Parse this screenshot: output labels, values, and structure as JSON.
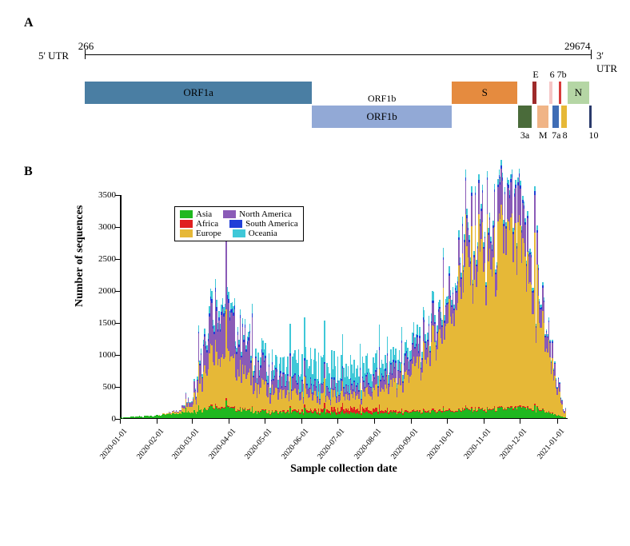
{
  "panelA": {
    "label": "A",
    "utr5": "5' UTR",
    "utr3": "3' UTR",
    "leftPos": "266",
    "rightPos": "29674",
    "scaleTotal": 29674,
    "trackTopY": 54,
    "trackBotY": 84,
    "genes": [
      {
        "name": "ORF1a",
        "start": 266,
        "end": 13468,
        "color": "#4a7ea3",
        "row": "top",
        "labelInside": true
      },
      {
        "name": "ORF1b",
        "start": 13468,
        "end": 21555,
        "color": "#92a9d6",
        "row": "bot",
        "labelInside": true,
        "labelAbove": true,
        "labelAboveText": "ORF1b"
      },
      {
        "name": "S",
        "start": 21563,
        "end": 25384,
        "color": "#e58b3f",
        "row": "top",
        "labelInside": true
      },
      {
        "name": "3a",
        "start": 25393,
        "end": 26220,
        "color": "#4a6b3a",
        "row": "bot",
        "labelBelow": true
      },
      {
        "name": "E",
        "start": 26245,
        "end": 26472,
        "color": "#9e2b2b",
        "row": "top",
        "labelAbove": true,
        "labelAboveText": "E"
      },
      {
        "name": "M",
        "start": 26523,
        "end": 27191,
        "color": "#f0b486",
        "row": "bot",
        "labelBelow": true
      },
      {
        "name": "6",
        "start": 27202,
        "end": 27387,
        "color": "#f6c6c6",
        "row": "top",
        "labelAbove": true,
        "labelAboveText": "6"
      },
      {
        "name": "7a",
        "start": 27394,
        "end": 27759,
        "color": "#3f6db5",
        "row": "bot",
        "labelBelow": true
      },
      {
        "name": "7b",
        "start": 27756,
        "end": 27887,
        "color": "#d83a3a",
        "row": "top",
        "labelAbove": true,
        "labelAboveText": "7b"
      },
      {
        "name": "8",
        "start": 27894,
        "end": 28259,
        "color": "#e6b837",
        "row": "bot",
        "labelBelow": true
      },
      {
        "name": "N",
        "start": 28274,
        "end": 29533,
        "color": "#b5d6a5",
        "row": "top",
        "labelInside": true
      },
      {
        "name": "10",
        "start": 29558,
        "end": 29674,
        "color": "#2a3a6b",
        "row": "bot",
        "labelBelow": true
      }
    ]
  },
  "panelB": {
    "label": "B",
    "ylabel": "Number of sequences",
    "xlabel": "Sample collection date",
    "ylim": [
      0,
      3500
    ],
    "ytick_step": 500,
    "legend": [
      {
        "name": "Asia",
        "color": "#1fb81f"
      },
      {
        "name": "Africa",
        "color": "#e02020"
      },
      {
        "name": "Europe",
        "color": "#e6b837"
      },
      {
        "name": "North America",
        "color": "#8a5bb7"
      },
      {
        "name": "South America",
        "color": "#1f3fd8"
      },
      {
        "name": "Oceania",
        "color": "#3fc8d8"
      }
    ],
    "xticks": [
      "2020-01-01",
      "2020-02-01",
      "2020-03-01",
      "2020-04-01",
      "2020-05-01",
      "2020-06-01",
      "2020-07-01",
      "2020-08-01",
      "2020-09-01",
      "2020-10-01",
      "2020-11-01",
      "2020-12-01",
      "2021-01-01"
    ],
    "stack_order": [
      "Asia",
      "Africa",
      "Europe",
      "North America",
      "South America",
      "Oceania"
    ],
    "series_colors": {
      "Asia": "#1fb81f",
      "Africa": "#e02020",
      "Europe": "#e6b837",
      "North America": "#8a5bb7",
      "South America": "#1f3fd8",
      "Oceania": "#3fc8d8"
    },
    "profile": [
      {
        "d": "2020-01-01",
        "v": {
          "Asia": 5
        }
      },
      {
        "d": "2020-01-10",
        "v": {
          "Asia": 20
        }
      },
      {
        "d": "2020-01-20",
        "v": {
          "Asia": 30
        }
      },
      {
        "d": "2020-02-01",
        "v": {
          "Asia": 40
        }
      },
      {
        "d": "2020-02-10",
        "v": {
          "Asia": 60,
          "Europe": 10
        }
      },
      {
        "d": "2020-02-20",
        "v": {
          "Asia": 80,
          "Europe": 40,
          "North America": 20
        }
      },
      {
        "d": "2020-03-01",
        "v": {
          "Asia": 100,
          "Europe": 120,
          "North America": 80,
          "Oceania": 20
        }
      },
      {
        "d": "2020-03-10",
        "v": {
          "Asia": 150,
          "Europe": 600,
          "North America": 400,
          "Oceania": 80,
          "South America": 30
        }
      },
      {
        "d": "2020-03-20",
        "v": {
          "Asia": 180,
          "Africa": 20,
          "Europe": 900,
          "North America": 650,
          "South America": 60,
          "Oceania": 120
        }
      },
      {
        "d": "2020-03-28",
        "v": {
          "Asia": 160,
          "Africa": 20,
          "Europe": 820,
          "North America": 720,
          "South America": 60,
          "Oceania": 110
        }
      },
      {
        "d": "2020-04-03",
        "v": {
          "Asia": 140,
          "Africa": 15,
          "Europe": 700,
          "North America": 600,
          "South America": 50,
          "Oceania": 90
        }
      },
      {
        "d": "2020-04-15",
        "v": {
          "Asia": 120,
          "Africa": 10,
          "Europe": 550,
          "North America": 480,
          "South America": 40,
          "Oceania": 70
        }
      },
      {
        "d": "2020-05-01",
        "v": {
          "Asia": 100,
          "Africa": 10,
          "Europe": 350,
          "North America": 300,
          "South America": 30,
          "Oceania": 150
        }
      },
      {
        "d": "2020-05-15",
        "v": {
          "Asia": 90,
          "Africa": 10,
          "Europe": 280,
          "North America": 220,
          "South America": 25,
          "Oceania": 180
        }
      },
      {
        "d": "2020-06-01",
        "v": {
          "Asia": 90,
          "Africa": 30,
          "Europe": 250,
          "North America": 150,
          "South America": 20,
          "Oceania": 350
        }
      },
      {
        "d": "2020-06-15",
        "v": {
          "Asia": 90,
          "Africa": 40,
          "Europe": 230,
          "North America": 130,
          "South America": 20,
          "Oceania": 400
        }
      },
      {
        "d": "2020-07-01",
        "v": {
          "Asia": 80,
          "Africa": 60,
          "Europe": 210,
          "North America": 130,
          "South America": 20,
          "Oceania": 320
        }
      },
      {
        "d": "2020-07-15",
        "v": {
          "Asia": 80,
          "Africa": 70,
          "Europe": 200,
          "North America": 130,
          "South America": 20,
          "Oceania": 280
        }
      },
      {
        "d": "2020-08-01",
        "v": {
          "Asia": 80,
          "Africa": 50,
          "Europe": 280,
          "North America": 160,
          "South America": 25,
          "Oceania": 220
        }
      },
      {
        "d": "2020-08-15",
        "v": {
          "Asia": 80,
          "Africa": 30,
          "Europe": 380,
          "North America": 200,
          "South America": 25,
          "Oceania": 180
        }
      },
      {
        "d": "2020-09-01",
        "v": {
          "Asia": 90,
          "Africa": 20,
          "Europe": 600,
          "North America": 250,
          "South America": 30,
          "Oceania": 150
        }
      },
      {
        "d": "2020-09-15",
        "v": {
          "Asia": 100,
          "Africa": 20,
          "Europe": 900,
          "North America": 280,
          "South America": 30,
          "Oceania": 120
        }
      },
      {
        "d": "2020-10-01",
        "v": {
          "Asia": 110,
          "Africa": 15,
          "Europe": 1300,
          "North America": 300,
          "South America": 30,
          "Oceania": 100
        }
      },
      {
        "d": "2020-10-10",
        "v": {
          "Asia": 110,
          "Africa": 15,
          "Europe": 1800,
          "North America": 320,
          "South America": 30,
          "Oceania": 90
        }
      },
      {
        "d": "2020-10-20",
        "v": {
          "Asia": 120,
          "Africa": 15,
          "Europe": 2100,
          "North America": 370,
          "South America": 35,
          "Oceania": 80
        }
      },
      {
        "d": "2020-11-01",
        "v": {
          "Asia": 130,
          "Africa": 15,
          "Europe": 2600,
          "North America": 420,
          "South America": 35,
          "Oceania": 80
        }
      },
      {
        "d": "2020-11-10",
        "v": {
          "Asia": 130,
          "Africa": 15,
          "Europe": 2200,
          "North America": 430,
          "South America": 35,
          "Oceania": 70
        }
      },
      {
        "d": "2020-11-20",
        "v": {
          "Asia": 140,
          "Africa": 15,
          "Europe": 2700,
          "North America": 470,
          "South America": 40,
          "Oceania": 70
        }
      },
      {
        "d": "2020-12-01",
        "v": {
          "Asia": 140,
          "Africa": 15,
          "Europe": 2300,
          "North America": 460,
          "South America": 40,
          "Oceania": 60
        }
      },
      {
        "d": "2020-12-10",
        "v": {
          "Asia": 140,
          "Africa": 15,
          "Europe": 2000,
          "North America": 440,
          "South America": 35,
          "Oceania": 55
        }
      },
      {
        "d": "2020-12-20",
        "v": {
          "Asia": 120,
          "Africa": 10,
          "Europe": 1400,
          "North America": 320,
          "South America": 30,
          "Oceania": 45
        }
      },
      {
        "d": "2021-01-01",
        "v": {
          "Asia": 60,
          "Africa": 5,
          "Europe": 600,
          "North America": 180,
          "South America": 15,
          "Oceania": 25
        }
      },
      {
        "d": "2021-01-08",
        "v": {
          "Asia": 10,
          "Africa": 0,
          "Europe": 80,
          "North America": 30,
          "South America": 5,
          "Oceania": 5
        }
      }
    ],
    "daily_jitter": 0.55,
    "daily_spike": 1.45
  }
}
